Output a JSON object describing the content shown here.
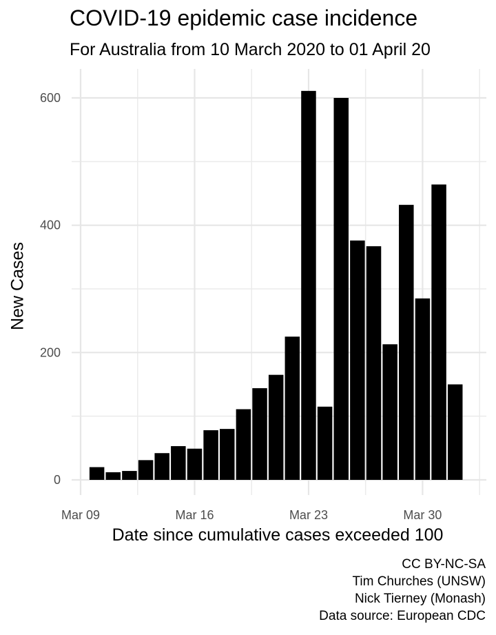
{
  "chart_data": {
    "type": "bar",
    "title": "COVID-19 epidemic case incidence",
    "subtitle": "For Australia from 10 March 2020 to 01 April 20",
    "xlabel": "Date since cumulative cases exceeded 100",
    "ylabel": "New Cases",
    "x_tick_labels": [
      "Mar 09",
      "Mar 16",
      "Mar 23",
      "Mar 30"
    ],
    "y_ticks": [
      0,
      200,
      400,
      600
    ],
    "ylim": [
      0,
      600
    ],
    "grid": true,
    "bar_color": "#000000",
    "categories": [
      "2020-03-10",
      "2020-03-11",
      "2020-03-12",
      "2020-03-13",
      "2020-03-14",
      "2020-03-15",
      "2020-03-16",
      "2020-03-17",
      "2020-03-18",
      "2020-03-19",
      "2020-03-20",
      "2020-03-21",
      "2020-03-22",
      "2020-03-23",
      "2020-03-24",
      "2020-03-25",
      "2020-03-26",
      "2020-03-27",
      "2020-03-28",
      "2020-03-29",
      "2020-03-30",
      "2020-03-31",
      "2020-04-01"
    ],
    "values": [
      20,
      12,
      14,
      31,
      42,
      53,
      49,
      78,
      80,
      111,
      144,
      165,
      225,
      611,
      115,
      600,
      376,
      367,
      213,
      432,
      285,
      464,
      150
    ]
  },
  "caption": {
    "license": "CC BY-NC-SA",
    "author1": "Tim Churches (UNSW)",
    "author2": "Nick Tierney (Monash)",
    "source": "Data source: European CDC"
  }
}
